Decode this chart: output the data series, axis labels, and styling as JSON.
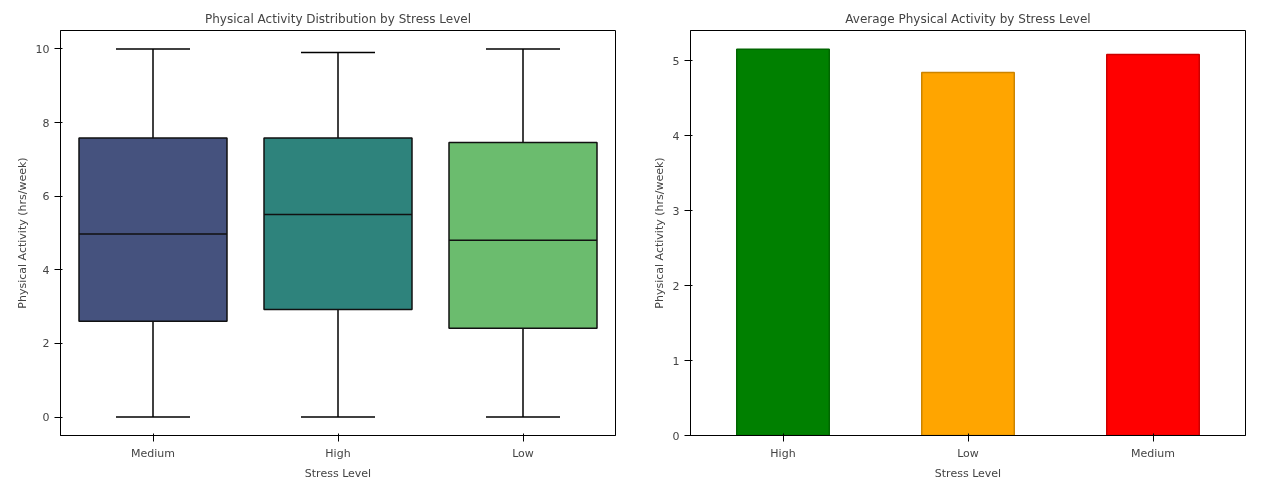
{
  "chart_data": [
    {
      "type": "box",
      "title": "Physical Activity Distribution by Stress Level",
      "xlabel": "Stress Level",
      "ylabel": "Physical Activity (hrs/week)",
      "categories": [
        "Medium",
        "High",
        "Low"
      ],
      "colors": [
        "#45527e",
        "#2e837c",
        "#6bbc6e"
      ],
      "boxes": [
        {
          "low": 0,
          "q1": 2.6,
          "median": 4.97,
          "q3": 7.58,
          "high": 10
        },
        {
          "low": 0,
          "q1": 2.92,
          "median": 5.5,
          "q3": 7.58,
          "high": 9.9
        },
        {
          "low": 0,
          "q1": 2.41,
          "median": 4.8,
          "q3": 7.46,
          "high": 10
        }
      ],
      "ylim": [
        -0.5,
        10.5
      ],
      "yticks": [
        0,
        2,
        4,
        6,
        8,
        10
      ],
      "grid": false
    },
    {
      "type": "bar",
      "title": "Average Physical Activity by Stress Level",
      "xlabel": "Stress Level",
      "ylabel": "Physical Activity (hrs/week)",
      "categories": [
        "High",
        "Low",
        "Medium"
      ],
      "values": [
        5.15,
        4.84,
        5.08
      ],
      "colors": [
        "#008000",
        "#ffa500",
        "#ff0000"
      ],
      "ylim": [
        0,
        5.4
      ],
      "yticks": [
        0,
        1,
        2,
        3,
        4,
        5
      ],
      "grid": false
    }
  ]
}
